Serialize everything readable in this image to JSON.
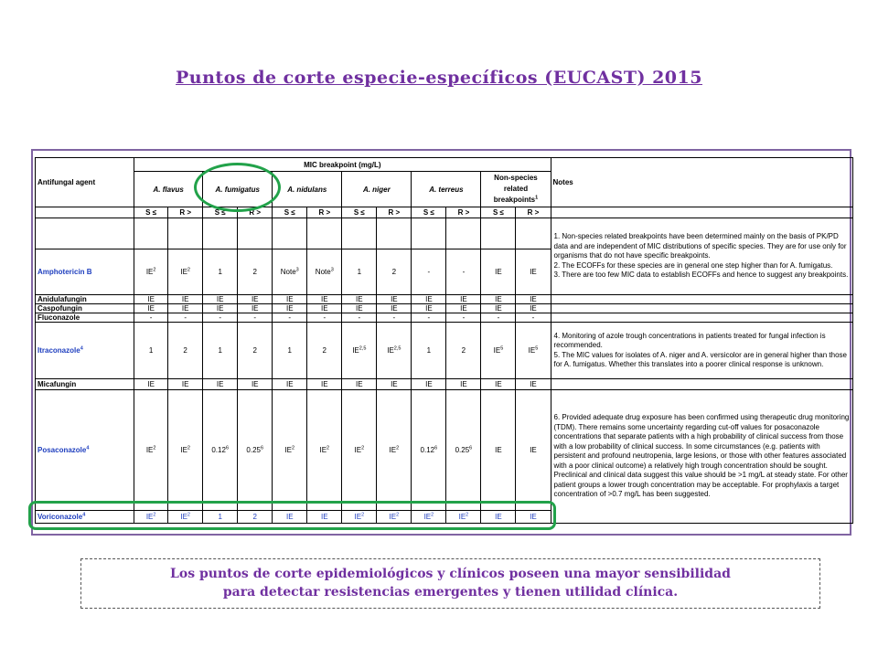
{
  "title": "Puntos de corte especie-específicos (EUCAST) 2015",
  "table": {
    "agent_header": "Antifungal agent",
    "mic_header": "MIC breakpoint (mg/L)",
    "notes_header": "Notes",
    "species": [
      "A. flavus",
      "A. fumigatus",
      "A. nidulans",
      "A. niger",
      "A. terreus"
    ],
    "nonspecies_header": "Non-species related breakpoints",
    "nonspecies_sup": "1",
    "s_label": "S ≤",
    "r_label": "R >",
    "notes": {
      "note1": "1. Non-species related breakpoints have been determined mainly on the basis of PK/PD data and are independent of MIC distributions of specific species. They are for use only for organisms that do not have specific breakpoints.",
      "note2": "2. The ECOFFs for these species are in general one step higher than for A. fumigatus.",
      "note3": "3. There are too few MIC data to establish ECOFFs and hence to suggest any breakpoints.",
      "note4": "4. Monitoring of azole trough concentrations in patients treated for fungal infection is recommended.",
      "note5": "5. The MIC values for isolates of A. niger and A. versicolor are in general higher than those for A. fumigatus. Whether this translates into a poorer clinical response is unknown.",
      "note6": "6. Provided adequate drug exposure has been confirmed using therapeutic drug monitoring (TDM). There remains some uncertainty regarding cut-off values for posaconazole concentrations that separate patients with a high probability of clinical success from those with a low probability of clinical success. In some circumstances (e.g. patients with persistent and profound neutropenia, large lesions, or those with other features associated with a poor clinical outcome) a relatively high trough concentration should be sought. Preclinical and clinical data suggest this value should be >1 mg/L at steady state. For other patient groups a lower trough concentration may be acceptable. For prophylaxis a target concentration of >0.7 mg/L has been suggested."
    },
    "rows": {
      "amphotericin": {
        "name": "Amphotericin B",
        "sup": "",
        "cells": [
          [
            "IE",
            "2"
          ],
          [
            "IE",
            "2"
          ],
          [
            "1",
            ""
          ],
          [
            "2",
            ""
          ],
          [
            "Note",
            "3"
          ],
          [
            "Note",
            "3"
          ],
          [
            "1",
            ""
          ],
          [
            "2",
            ""
          ],
          [
            "-",
            ""
          ],
          [
            "-",
            ""
          ],
          [
            "IE",
            ""
          ],
          [
            "IE",
            ""
          ]
        ]
      },
      "anidulafungin": {
        "name": "Anidulafungin",
        "sup": "",
        "cells": [
          [
            "IE",
            ""
          ],
          [
            "IE",
            ""
          ],
          [
            "IE",
            ""
          ],
          [
            "IE",
            ""
          ],
          [
            "IE",
            ""
          ],
          [
            "IE",
            ""
          ],
          [
            "IE",
            ""
          ],
          [
            "IE",
            ""
          ],
          [
            "IE",
            ""
          ],
          [
            "IE",
            ""
          ],
          [
            "IE",
            ""
          ],
          [
            "IE",
            ""
          ]
        ]
      },
      "caspofungin": {
        "name": "Caspofungin",
        "sup": "",
        "cells": [
          [
            "IE",
            ""
          ],
          [
            "IE",
            ""
          ],
          [
            "IE",
            ""
          ],
          [
            "IE",
            ""
          ],
          [
            "IE",
            ""
          ],
          [
            "IE",
            ""
          ],
          [
            "IE",
            ""
          ],
          [
            "IE",
            ""
          ],
          [
            "IE",
            ""
          ],
          [
            "IE",
            ""
          ],
          [
            "IE",
            ""
          ],
          [
            "IE",
            ""
          ]
        ]
      },
      "fluconazole": {
        "name": "Fluconazole",
        "sup": "",
        "cells": [
          [
            "-",
            ""
          ],
          [
            "-",
            ""
          ],
          [
            "-",
            ""
          ],
          [
            "-",
            ""
          ],
          [
            "-",
            ""
          ],
          [
            "-",
            ""
          ],
          [
            "-",
            ""
          ],
          [
            "-",
            ""
          ],
          [
            "-",
            ""
          ],
          [
            "-",
            ""
          ],
          [
            "-",
            ""
          ],
          [
            "-",
            ""
          ]
        ]
      },
      "itraconazole": {
        "name": "Itraconazole",
        "sup": "4",
        "cells": [
          [
            "1",
            ""
          ],
          [
            "2",
            ""
          ],
          [
            "1",
            ""
          ],
          [
            "2",
            ""
          ],
          [
            "1",
            ""
          ],
          [
            "2",
            ""
          ],
          [
            "IE",
            "2,5"
          ],
          [
            "IE",
            "2,5"
          ],
          [
            "1",
            ""
          ],
          [
            "2",
            ""
          ],
          [
            "IE",
            "5"
          ],
          [
            "IE",
            "5"
          ]
        ]
      },
      "micafungin": {
        "name": "Micafungin",
        "sup": "",
        "cells": [
          [
            "IE",
            ""
          ],
          [
            "IE",
            ""
          ],
          [
            "IE",
            ""
          ],
          [
            "IE",
            ""
          ],
          [
            "IE",
            ""
          ],
          [
            "IE",
            ""
          ],
          [
            "IE",
            ""
          ],
          [
            "IE",
            ""
          ],
          [
            "IE",
            ""
          ],
          [
            "IE",
            ""
          ],
          [
            "IE",
            ""
          ],
          [
            "IE",
            ""
          ]
        ]
      },
      "posaconazole": {
        "name": "Posaconazole",
        "sup": "4",
        "cells": [
          [
            "IE",
            "2"
          ],
          [
            "IE",
            "2"
          ],
          [
            "0.12",
            "6"
          ],
          [
            "0.25",
            "6"
          ],
          [
            "IE",
            "2"
          ],
          [
            "IE",
            "2"
          ],
          [
            "IE",
            "2"
          ],
          [
            "IE",
            "2"
          ],
          [
            "0.12",
            "6"
          ],
          [
            "0.25",
            "6"
          ],
          [
            "IE",
            ""
          ],
          [
            "IE",
            ""
          ]
        ]
      },
      "voriconazole": {
        "name": "Voriconazole",
        "sup": "4",
        "cells": [
          [
            "IE",
            "2"
          ],
          [
            "IE",
            "2"
          ],
          [
            "1",
            ""
          ],
          [
            "2",
            ""
          ],
          [
            "IE",
            ""
          ],
          [
            "IE",
            ""
          ],
          [
            "IE",
            "2"
          ],
          [
            "IE",
            "2"
          ],
          [
            "IE",
            "2"
          ],
          [
            "IE",
            "2"
          ],
          [
            "IE",
            ""
          ],
          [
            "IE",
            ""
          ]
        ]
      }
    }
  },
  "footer": {
    "line1": "Los puntos de corte epidemiológicos y clínicos poseen una mayor sensibilidad",
    "line2": "para detectar resistencias emergentes y tienen utilidad clínica."
  },
  "colors": {
    "title": "#7030a0",
    "frame": "#8064a2",
    "highlight": "#22a24a",
    "blue_text": "#1f3fbf"
  }
}
